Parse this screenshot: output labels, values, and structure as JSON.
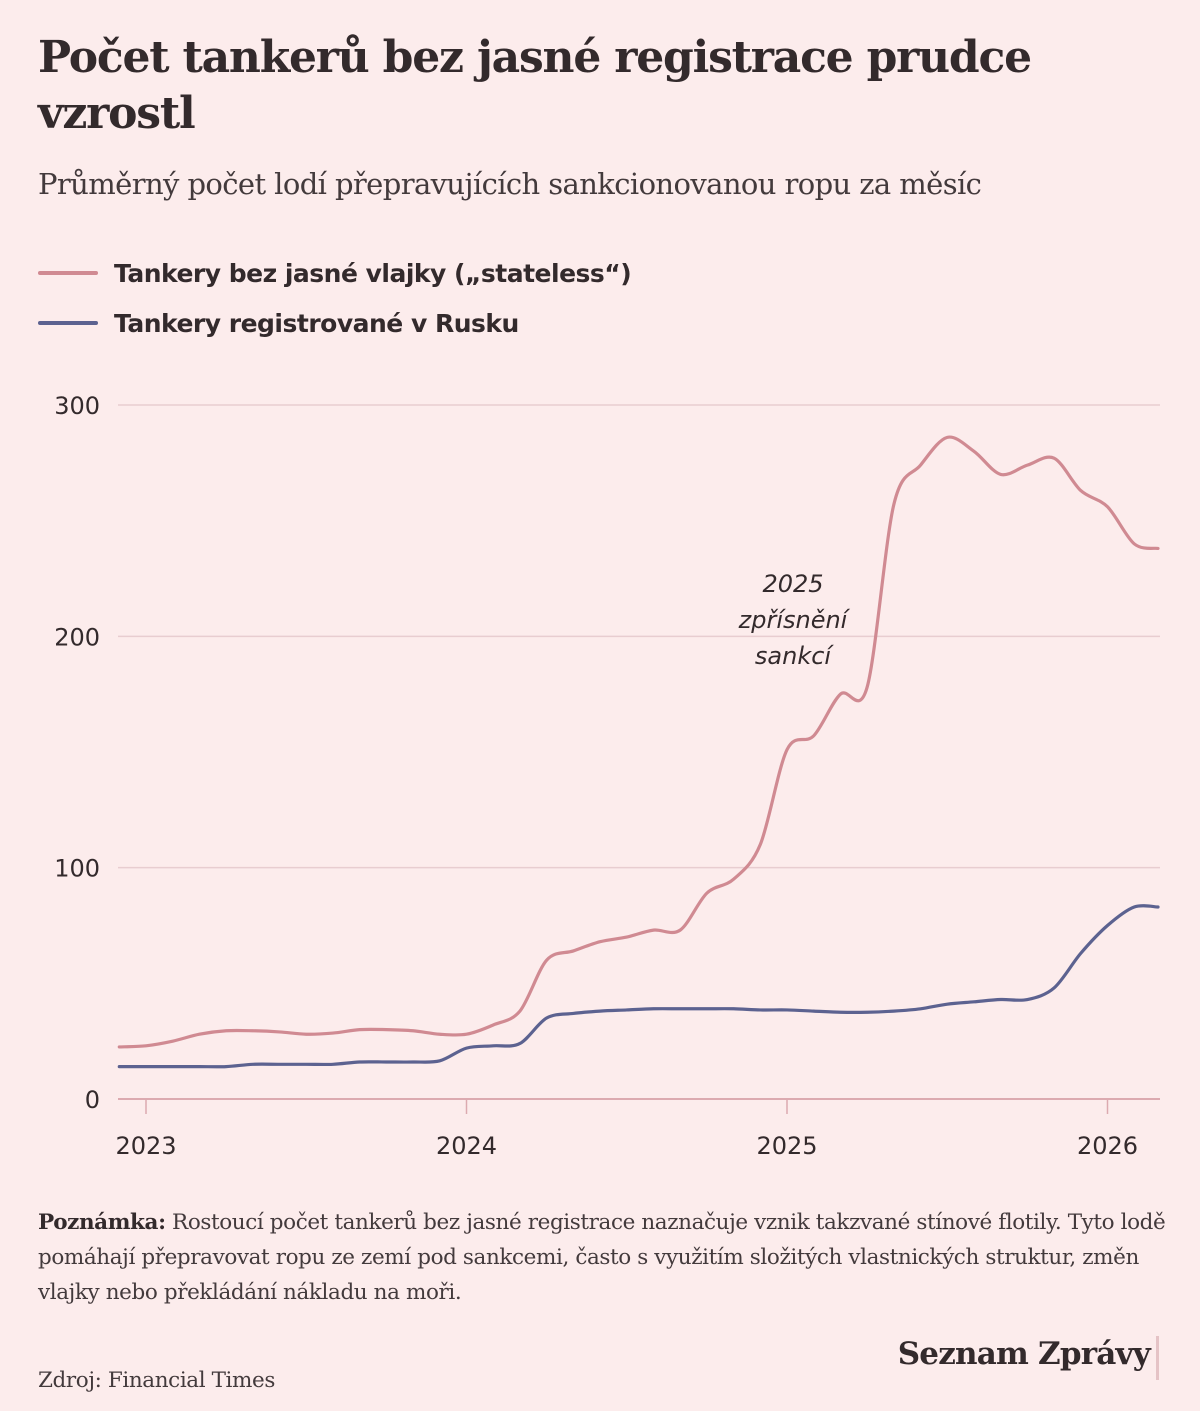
{
  "header": {
    "title": "Počet tankerů bez jasné registrace prudce vzrostl",
    "subtitle": "Průměrný počet lodí přepravujících sankcionovanou ropu za měsíc"
  },
  "legend": [
    {
      "label": "Tankery bez jasné vlajky („stateless“)",
      "color": "#d08a92"
    },
    {
      "label": "Tankery registrované v Rusku",
      "color": "#5c6290"
    }
  ],
  "chart_data": {
    "type": "line",
    "title": "Počet tankerů bez jasné registrace prudce vzrostl",
    "subtitle": "Průměrný počet lodí přepravujících sankcionovanou ropu za měsíc",
    "xlabel": "",
    "ylabel": "",
    "xlim": [
      2022.92,
      2026.17
    ],
    "ylim": [
      0,
      300
    ],
    "yticks": [
      0,
      100,
      200,
      300
    ],
    "ytick_labels": [
      "0",
      "100",
      "200",
      "300"
    ],
    "xticks": [
      2023,
      2024,
      2025,
      2026
    ],
    "xtick_labels": [
      "2023",
      "2024",
      "2025",
      "2026"
    ],
    "grid": true,
    "legend_position": "top-left",
    "x": [
      "2022-12",
      "2023-01",
      "2023-02",
      "2023-03",
      "2023-04",
      "2023-05",
      "2023-06",
      "2023-07",
      "2023-08",
      "2023-09",
      "2023-10",
      "2023-11",
      "2023-12",
      "2024-01",
      "2024-02",
      "2024-03",
      "2024-04",
      "2024-05",
      "2024-06",
      "2024-07",
      "2024-08",
      "2024-09",
      "2024-10",
      "2024-11",
      "2024-12",
      "2025-01",
      "2025-02",
      "2025-03",
      "2025-04",
      "2025-05",
      "2025-06",
      "2025-07",
      "2025-08",
      "2025-09",
      "2025-10",
      "2025-11",
      "2025-12",
      "2026-01",
      "2026-02",
      "2026-03"
    ],
    "series": [
      {
        "name": "Tankery bez jasné vlajky („stateless“)",
        "color": "#d08a92",
        "values": [
          22.5,
          23,
          25,
          28,
          29.5,
          29.5,
          29,
          28,
          28.5,
          30,
          30,
          29.5,
          28,
          28,
          32,
          38,
          60,
          64,
          68,
          70,
          73,
          73,
          89,
          95,
          110,
          151,
          157,
          175,
          178,
          257,
          274,
          286,
          280,
          270,
          274,
          277,
          263,
          256,
          240,
          238
        ]
      },
      {
        "name": "Tankery registrované v Rusku",
        "color": "#5c6290",
        "values": [
          14,
          14,
          14,
          14,
          14,
          15,
          15,
          15,
          15,
          16,
          16,
          16,
          16.5,
          22,
          23,
          24,
          35,
          37,
          38,
          38.5,
          39,
          39,
          39,
          39,
          38.5,
          38.5,
          38,
          37.5,
          37.5,
          38,
          39,
          41,
          42,
          43,
          43,
          48,
          63,
          75,
          83,
          83
        ]
      }
    ],
    "annotations": [
      {
        "lines": [
          "2025",
          "zpřísnění",
          "sankcí"
        ],
        "x": "2025-04",
        "y": 210
      }
    ]
  },
  "footer": {
    "note_label": "Poznámka:",
    "note_text": " Rostoucí počet tankerů bez jasné registrace naznačuje vznik takzvané stínové flotily. Tyto lodě pomáhají přepravovat ropu ze zemí pod sankcemi, často s využitím složitých vlastnických struktur, změn vlajky nebo překládání nákladu na moři.",
    "source": "Zdroj: Financial Times",
    "logo": "Seznam Zprávy"
  }
}
